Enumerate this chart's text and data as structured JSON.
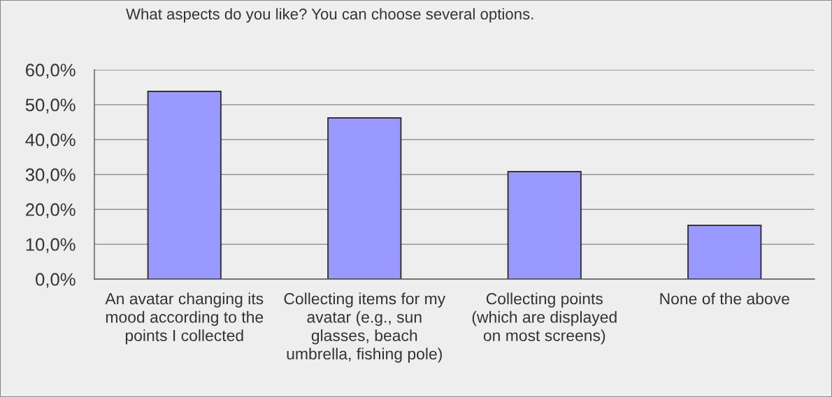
{
  "chart_data": {
    "type": "bar",
    "title": "What aspects do you like? You can choose several options.",
    "categories": [
      "An avatar changing its\nmood according to the\npoints I collected",
      "Collecting items for my\navatar (e.g., sun\nglasses, beach\numbrella, fishing pole)",
      "Collecting points\n(which are displayed\non most screens)",
      "None of the above"
    ],
    "values": [
      53.8,
      46.2,
      30.8,
      15.4
    ],
    "color": "#9999ff",
    "ylim": [
      0,
      60
    ],
    "yticks": [
      {
        "value": 0,
        "label": "0,0%"
      },
      {
        "value": 10,
        "label": "10,0%"
      },
      {
        "value": 20,
        "label": "20,0%"
      },
      {
        "value": 30,
        "label": "30,0%"
      },
      {
        "value": 40,
        "label": "40,0%"
      },
      {
        "value": 50,
        "label": "50,0%"
      },
      {
        "value": 60,
        "label": "60,0%"
      }
    ],
    "grid": "y",
    "legend": false
  }
}
